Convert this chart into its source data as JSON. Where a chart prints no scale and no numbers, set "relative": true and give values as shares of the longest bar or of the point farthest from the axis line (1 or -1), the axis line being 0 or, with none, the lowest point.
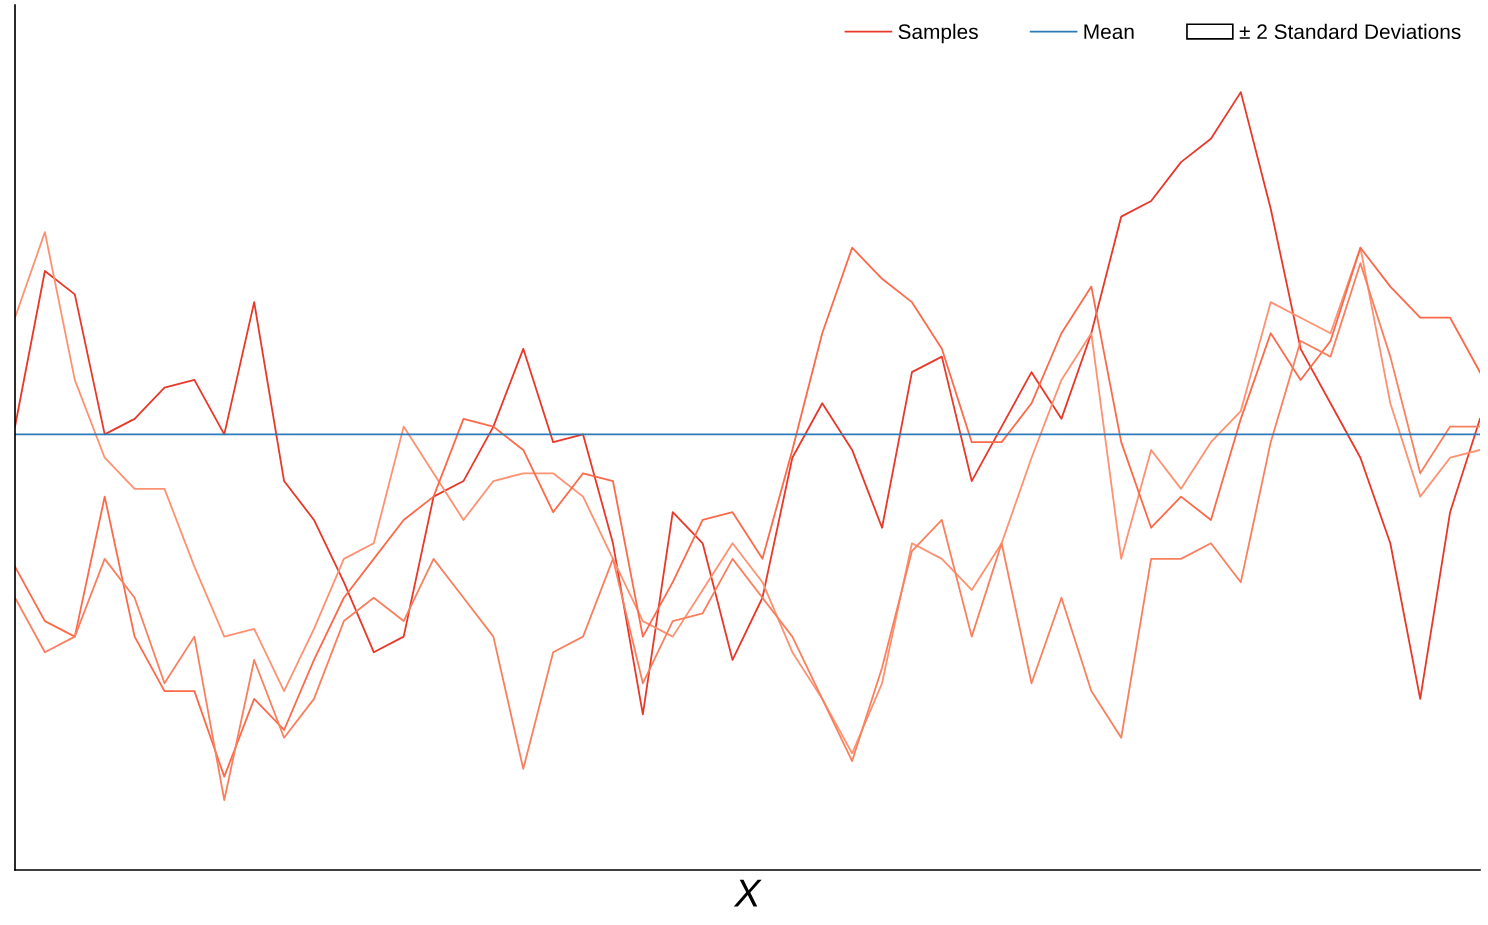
{
  "chart_data": {
    "type": "line",
    "xlabel": "X",
    "relative": true,
    "legend": "top right",
    "marker": "none",
    "line_style": "solid",
    "categories": [
      null,
      null,
      null,
      null,
      null,
      null,
      null,
      null,
      null,
      null,
      null,
      null,
      null,
      null,
      null,
      null,
      null,
      null,
      null,
      null,
      null,
      null,
      null,
      null,
      null,
      null,
      null,
      null,
      null,
      null,
      null,
      null,
      null,
      null,
      null,
      null,
      null,
      null,
      null,
      null,
      null,
      null,
      null,
      null,
      null,
      null,
      null,
      null,
      null,
      null
    ],
    "series": [
      {
        "name": "Samples",
        "color": "#e8382a",
        "values": [
          0.57,
          0.77,
          0.74,
          0.56,
          0.58,
          0.62,
          0.63,
          0.56,
          0.73,
          0.5,
          0.45,
          0.37,
          0.28,
          0.3,
          0.48,
          0.5,
          0.57,
          0.67,
          0.55,
          0.56,
          0.42,
          0.2,
          0.46,
          0.42,
          0.27,
          0.35,
          0.53,
          0.6,
          0.54,
          0.44,
          0.64,
          0.66,
          0.5,
          0.57,
          0.64,
          0.58,
          0.69,
          0.84,
          0.86,
          0.91,
          0.94,
          1.0,
          0.85,
          0.67,
          0.6,
          0.53,
          0.42,
          0.22,
          0.46,
          0.58
        ]
      },
      {
        "color": "#fc9272",
        "values": [
          0.71,
          0.82,
          0.63,
          0.53,
          0.49,
          0.49,
          0.39,
          0.3,
          0.31,
          0.23,
          0.31,
          0.4,
          0.42,
          0.57,
          0.51,
          0.45,
          0.5,
          0.51,
          0.51,
          0.48,
          0.4,
          0.32,
          0.3,
          0.36,
          0.42,
          0.37,
          0.28,
          0.22,
          0.15,
          0.24,
          0.42,
          0.4,
          0.36,
          0.42,
          0.53,
          0.63,
          0.69,
          0.4,
          0.54,
          0.49,
          0.55,
          0.59,
          0.73,
          0.71,
          0.69,
          0.8,
          0.6,
          0.48,
          0.53,
          0.54
        ]
      },
      {
        "color": "#fb6a4a",
        "values": [
          0.39,
          0.32,
          0.3,
          0.48,
          0.3,
          0.23,
          0.23,
          0.12,
          0.22,
          0.18,
          0.27,
          0.35,
          0.4,
          0.45,
          0.48,
          0.58,
          0.57,
          0.54,
          0.46,
          0.51,
          0.5,
          0.3,
          0.37,
          0.45,
          0.46,
          0.4,
          0.54,
          0.69,
          0.8,
          0.76,
          0.73,
          0.67,
          0.55,
          0.55,
          0.6,
          0.69,
          0.75,
          0.55,
          0.44,
          0.48,
          0.45,
          0.58,
          0.69,
          0.63,
          0.68,
          0.8,
          0.75,
          0.71,
          0.71,
          0.64
        ]
      },
      {
        "color": "#f9805f",
        "values": [
          0.35,
          0.28,
          0.3,
          0.4,
          0.35,
          0.24,
          0.3,
          0.09,
          0.27,
          0.17,
          0.22,
          0.32,
          0.35,
          0.32,
          0.4,
          0.35,
          0.3,
          0.13,
          0.28,
          0.3,
          0.4,
          0.24,
          0.32,
          0.33,
          0.4,
          0.35,
          0.3,
          0.22,
          0.14,
          0.26,
          0.41,
          0.45,
          0.3,
          0.42,
          0.24,
          0.35,
          0.23,
          0.17,
          0.4,
          0.4,
          0.42,
          0.37,
          0.55,
          0.68,
          0.66,
          0.78,
          0.66,
          0.51,
          0.57,
          0.57
        ]
      },
      {
        "name": "Mean",
        "color": "#2c7bb6",
        "values": [
          0.56,
          0.56,
          0.56,
          0.56,
          0.56,
          0.56,
          0.56,
          0.56,
          0.56,
          0.56,
          0.56,
          0.56,
          0.56,
          0.56,
          0.56,
          0.56,
          0.56,
          0.56,
          0.56,
          0.56,
          0.56,
          0.56,
          0.56,
          0.56,
          0.56,
          0.56,
          0.56,
          0.56,
          0.56,
          0.56,
          0.56,
          0.56,
          0.56,
          0.56,
          0.56,
          0.56,
          0.56,
          0.56,
          0.56,
          0.56,
          0.56,
          0.56,
          0.56,
          0.56,
          0.56,
          0.56,
          0.56,
          0.56,
          0.56,
          0.56
        ]
      },
      {
        "name": "± 2 Standard Deviations",
        "type": "area",
        "color": "#ffffff",
        "values": [
          null,
          null,
          null,
          null,
          null,
          null,
          null,
          null,
          null,
          null,
          null,
          null,
          null,
          null,
          null,
          null,
          null,
          null,
          null,
          null,
          null,
          null,
          null,
          null,
          null,
          null,
          null,
          null,
          null,
          null,
          null,
          null,
          null,
          null,
          null,
          null,
          null,
          null,
          null,
          null,
          null,
          null,
          null,
          null,
          null,
          null,
          null,
          null,
          null,
          null
        ]
      }
    ]
  }
}
